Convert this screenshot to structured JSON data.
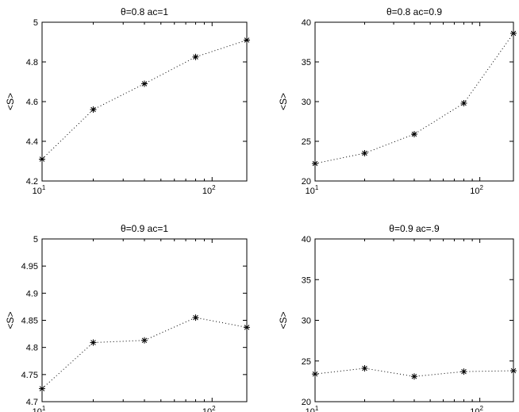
{
  "chart_data": [
    {
      "type": "line",
      "title": "θ=0.8 ac=1",
      "ylabel": "<S>",
      "xscale": "log",
      "xlim": [
        10,
        160
      ],
      "ylim": [
        4.2,
        5
      ],
      "yticks": [
        "4.2",
        "4.4",
        "4.6",
        "4.8",
        "5"
      ],
      "marker": "asterisk",
      "linestyle": "dotted",
      "x": [
        10,
        20,
        40,
        80,
        160
      ],
      "values": [
        4.31,
        4.56,
        4.69,
        4.825,
        4.91
      ]
    },
    {
      "type": "line",
      "title": "θ=0.8 ac=0.9",
      "ylabel": "<S>",
      "xscale": "log",
      "xlim": [
        10,
        160
      ],
      "ylim": [
        20,
        40
      ],
      "yticks": [
        "20",
        "25",
        "30",
        "35",
        "40"
      ],
      "marker": "asterisk",
      "linestyle": "dotted",
      "x": [
        10,
        20,
        40,
        80,
        160
      ],
      "values": [
        22.2,
        23.5,
        25.9,
        29.8,
        38.6
      ]
    },
    {
      "type": "line",
      "title": "θ=0.9 ac=1",
      "ylabel": "<S>",
      "xscale": "log",
      "xlim": [
        10,
        160
      ],
      "ylim": [
        4.7,
        5
      ],
      "yticks": [
        "4.7",
        "4.75",
        "4.8",
        "4.85",
        "4.9",
        "4.95",
        "5"
      ],
      "marker": "asterisk",
      "linestyle": "dotted",
      "x": [
        10,
        20,
        40,
        80,
        160
      ],
      "values": [
        4.724,
        4.809,
        4.813,
        4.855,
        4.837
      ]
    },
    {
      "type": "line",
      "title": "θ=0.9 ac=.9",
      "ylabel": "<S>",
      "xscale": "log",
      "xlim": [
        10,
        160
      ],
      "ylim": [
        20,
        40
      ],
      "yticks": [
        "20",
        "25",
        "30",
        "35",
        "40"
      ],
      "marker": "asterisk",
      "linestyle": "dotted",
      "x": [
        10,
        20,
        40,
        80,
        160
      ],
      "values": [
        23.4,
        24.1,
        23.1,
        23.7,
        23.8
      ]
    }
  ],
  "xaxis": {
    "tick_base": "10",
    "tick_exponents": [
      "1",
      "2"
    ]
  }
}
